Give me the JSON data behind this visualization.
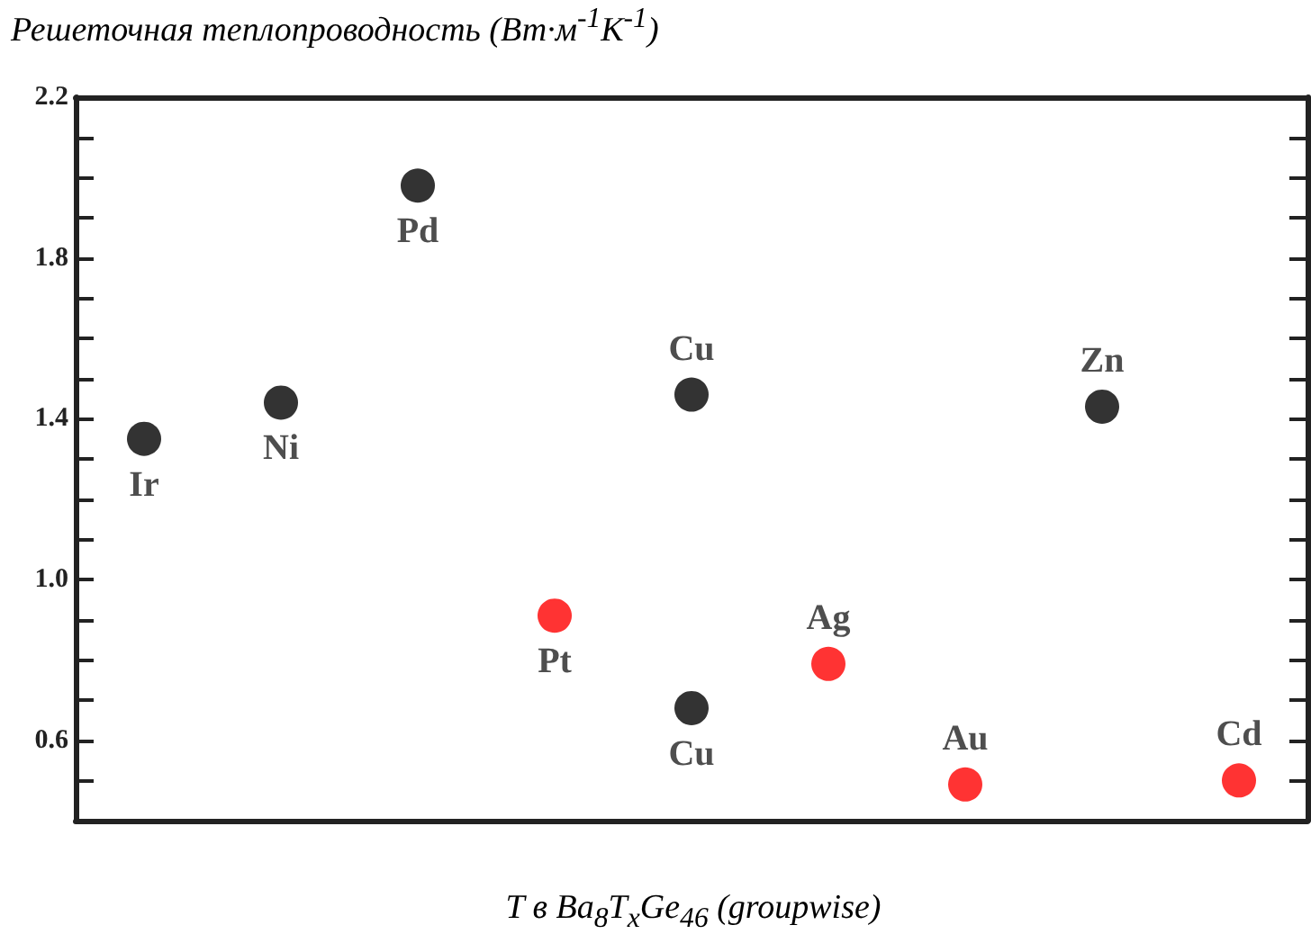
{
  "chart_data": {
    "type": "scatter",
    "ylabel": "Решеточная теплопроводность (Вт·м$^{-1}$К$^{-1}$)",
    "xlabel": "T в Ba$_{8}$T$_{x}$Ge$_{46}$ (groupwise)",
    "categories": [
      null,
      null,
      null,
      null,
      null,
      null,
      null,
      null,
      null
    ],
    "series": [
      {
        "color": "#000000",
        "values": [
          1.35,
          1.44,
          1.98,
          null,
          1.46,
          null,
          null,
          1.43,
          null
        ]
      },
      {
        "color": "#000000",
        "values": [
          null,
          null,
          null,
          null,
          0.68,
          null,
          null,
          null,
          null
        ]
      },
      {
        "color": "#ff0000",
        "values": [
          null,
          null,
          null,
          0.91,
          null,
          0.79,
          0.49,
          null,
          0.5
        ]
      }
    ],
    "annotations": [
      {
        "text": "Ir",
        "y": 1.35
      },
      {
        "text": "Ni",
        "y": 1.44
      },
      {
        "text": "Pd",
        "y": 1.98
      },
      {
        "text": "Cu",
        "y": 1.46
      },
      {
        "text": "Pt",
        "y": 0.91
      },
      {
        "text": "Cu",
        "y": 0.68
      },
      {
        "text": "Ag",
        "y": 0.79
      },
      {
        "text": "Au",
        "y": 0.49
      },
      {
        "text": "Zn",
        "y": 1.43
      },
      {
        "text": "Cd",
        "y": 0.5
      }
    ],
    "ylim": [
      0.4,
      2.2
    ],
    "yticks": [
      {
        "value": 0.5,
        "label": null
      },
      {
        "value": 0.6,
        "label": "0.6"
      },
      {
        "value": 0.7,
        "label": null
      },
      {
        "value": 0.8,
        "label": null
      },
      {
        "value": 0.9,
        "label": null
      },
      {
        "value": 1.0,
        "label": "1.0"
      },
      {
        "value": 1.1,
        "label": null
      },
      {
        "value": 1.2,
        "label": null
      },
      {
        "value": 1.3,
        "label": null
      },
      {
        "value": 1.4,
        "label": "1.4"
      },
      {
        "value": 1.5,
        "label": null
      },
      {
        "value": 1.6,
        "label": null
      },
      {
        "value": 1.7,
        "label": null
      },
      {
        "value": 1.8,
        "label": "1.8"
      },
      {
        "value": 1.9,
        "label": null
      },
      {
        "value": 2.0,
        "label": null
      },
      {
        "value": 2.1,
        "label": null
      },
      {
        "value": 2.2,
        "label": "2.2"
      }
    ],
    "tick_labels": "y",
    "marker": "circle",
    "grid": false
  }
}
